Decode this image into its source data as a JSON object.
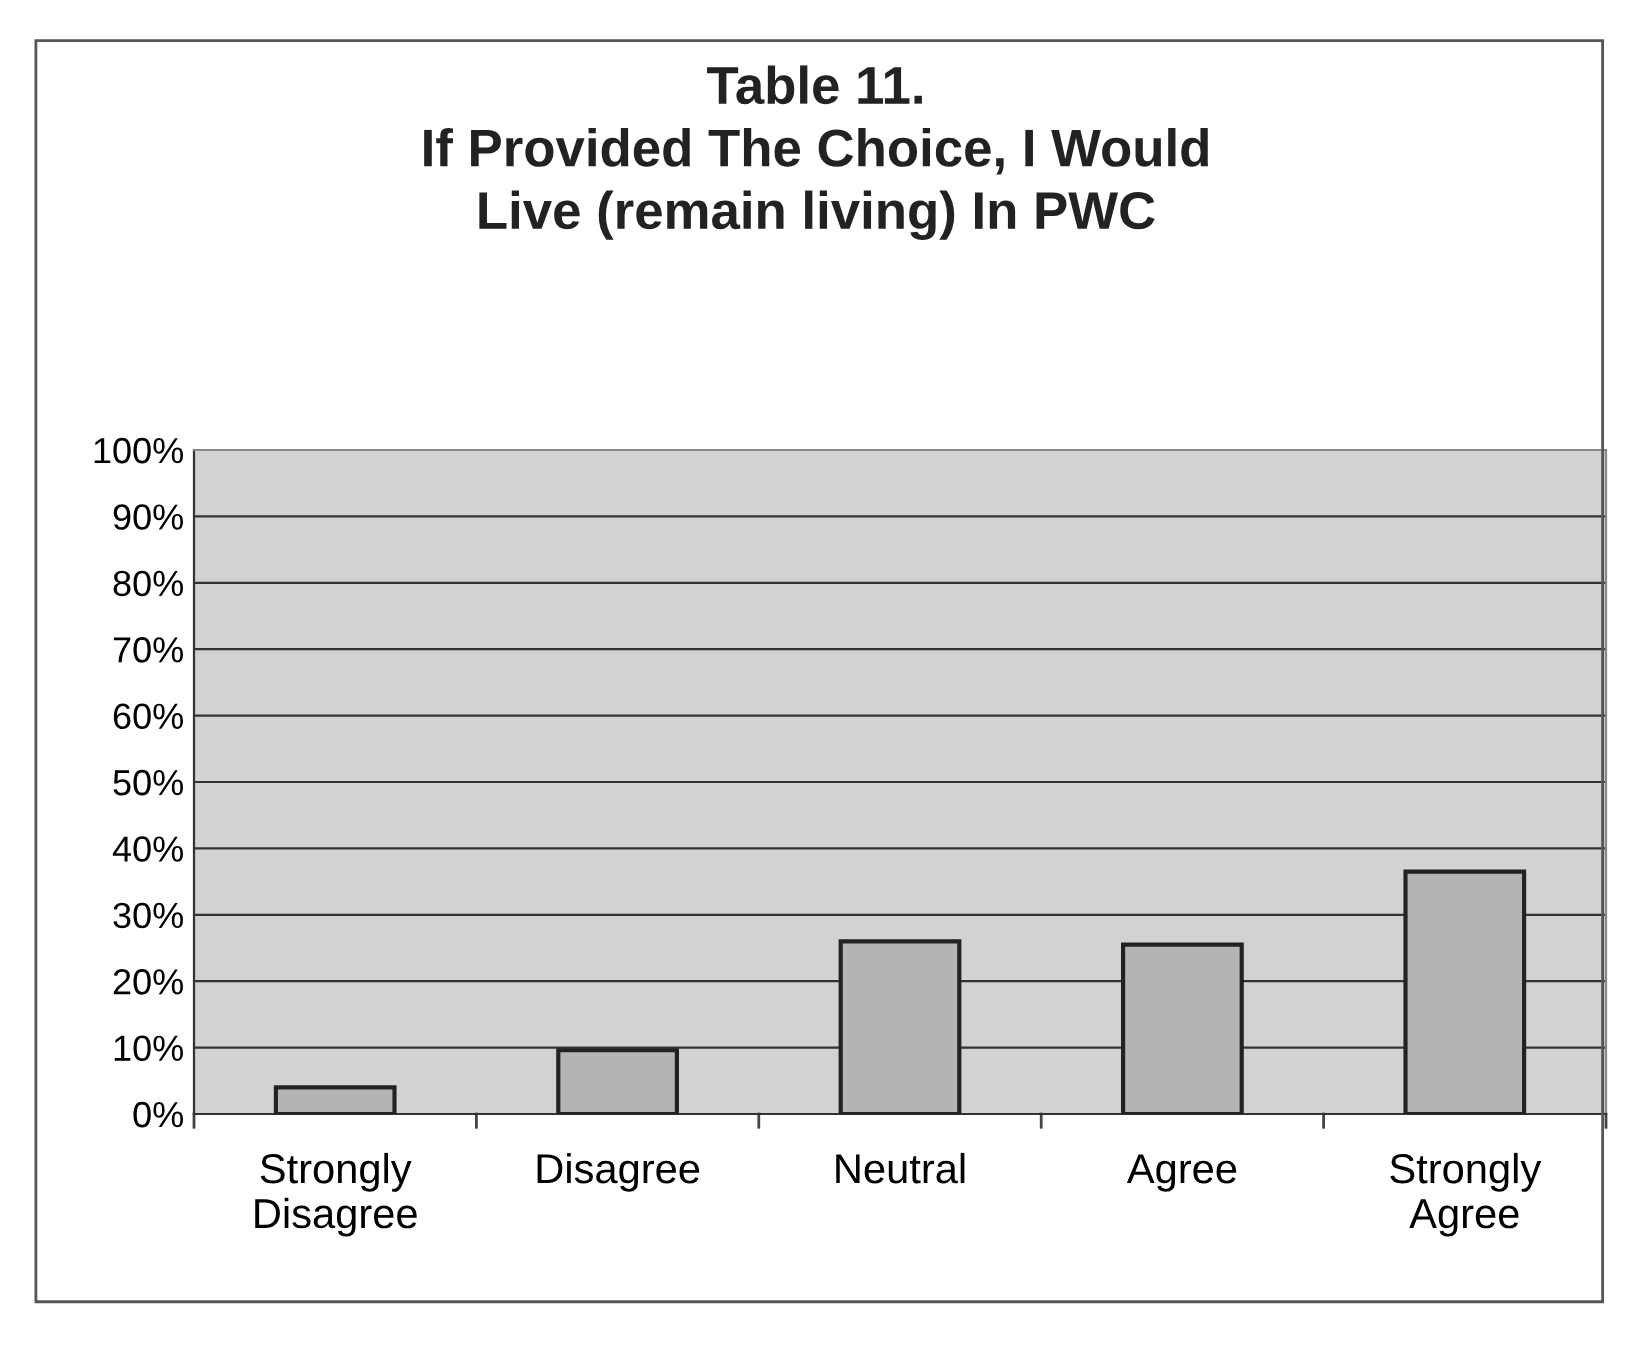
{
  "chart_data": {
    "type": "bar",
    "title": "Table 11.\nIf Provided The Choice, I Would\nLive (remain living) In PWC",
    "categories": [
      "Strongly\nDisagree",
      "Disagree",
      "Neutral",
      "Agree",
      "Strongly\nAgree"
    ],
    "values": [
      4,
      9.6,
      26,
      25.5,
      36.5
    ],
    "color": "#b4b4b4",
    "ylim": [
      0,
      100
    ],
    "yticks": [
      {
        "value": 0,
        "label": "0%"
      },
      {
        "value": 10,
        "label": "10%"
      },
      {
        "value": 20,
        "label": "20%"
      },
      {
        "value": 30,
        "label": "30%"
      },
      {
        "value": 40,
        "label": "40%"
      },
      {
        "value": 50,
        "label": "50%"
      },
      {
        "value": 60,
        "label": "60%"
      },
      {
        "value": 70,
        "label": "70%"
      },
      {
        "value": 80,
        "label": "80%"
      },
      {
        "value": 90,
        "label": "90%"
      },
      {
        "value": 100,
        "label": "100%"
      }
    ],
    "grid": "y"
  }
}
